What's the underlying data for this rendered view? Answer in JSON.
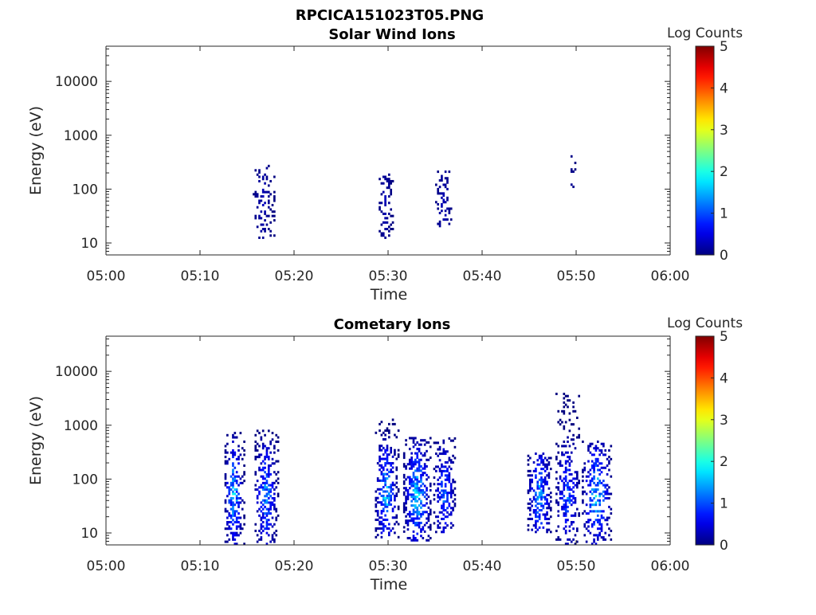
{
  "figure_title": "RPCICA151023T05.PNG",
  "chart_data": [
    {
      "type": "heatmap",
      "title": "Solar Wind Ions",
      "xlabel": "Time",
      "ylabel": "Energy (eV)",
      "x_ticks": [
        "05:00",
        "05:10",
        "05:20",
        "05:30",
        "05:40",
        "05:50",
        "06:00"
      ],
      "xlim_minutes": [
        0,
        60
      ],
      "y_scale": "log",
      "y_ticks": [
        "10",
        "100",
        "1000",
        "10000"
      ],
      "ylim": [
        6,
        45000
      ],
      "colorbar": {
        "label": "Log Counts",
        "ticks": [
          "0",
          "1",
          "2",
          "3",
          "4",
          "5"
        ],
        "range": [
          0,
          5
        ],
        "colormap": "jet"
      },
      "clusters": [
        {
          "t_min": 15.6,
          "t_max": 17.8,
          "e_min": 12,
          "e_max": 350,
          "peak": 0.3,
          "density": 0.35
        },
        {
          "t_min": 29.0,
          "t_max": 30.4,
          "e_min": 12,
          "e_max": 180,
          "peak": 0.3,
          "density": 0.45
        },
        {
          "t_min": 35.0,
          "t_max": 36.8,
          "e_min": 18,
          "e_max": 210,
          "peak": 0.3,
          "density": 0.4
        },
        {
          "t_min": 49.2,
          "t_max": 49.9,
          "e_min": 80,
          "e_max": 400,
          "peak": 0.2,
          "density": 0.15
        }
      ]
    },
    {
      "type": "heatmap",
      "title": "Cometary Ions",
      "xlabel": "Time",
      "ylabel": "Energy (eV)",
      "x_ticks": [
        "05:00",
        "05:10",
        "05:20",
        "05:30",
        "05:40",
        "05:50",
        "06:00"
      ],
      "xlim_minutes": [
        0,
        60
      ],
      "y_scale": "log",
      "y_ticks": [
        "10",
        "100",
        "1000",
        "10000"
      ],
      "ylim": [
        6,
        45000
      ],
      "colorbar": {
        "label": "Log Counts",
        "ticks": [
          "0",
          "1",
          "2",
          "3",
          "4",
          "5"
        ],
        "range": [
          0,
          5
        ],
        "colormap": "jet"
      },
      "clusters": [
        {
          "t_min": 12.6,
          "t_max": 14.6,
          "e_min": 6,
          "e_max": 700,
          "peak": 1.9,
          "density": 0.6
        },
        {
          "t_min": 15.8,
          "t_max": 18.2,
          "e_min": 6,
          "e_max": 800,
          "peak": 1.6,
          "density": 0.65
        },
        {
          "t_min": 28.6,
          "t_max": 31.0,
          "e_min": 8,
          "e_max": 1300,
          "peak": 1.9,
          "density": 0.65
        },
        {
          "t_min": 31.6,
          "t_max": 34.6,
          "e_min": 7,
          "e_max": 600,
          "peak": 2.0,
          "density": 0.7
        },
        {
          "t_min": 34.8,
          "t_max": 37.2,
          "e_min": 10,
          "e_max": 550,
          "peak": 1.3,
          "density": 0.6
        },
        {
          "t_min": 44.8,
          "t_max": 47.4,
          "e_min": 10,
          "e_max": 300,
          "peak": 1.6,
          "density": 0.6
        },
        {
          "t_min": 47.8,
          "t_max": 50.4,
          "e_min": 6,
          "e_max": 4000,
          "peak": 1.3,
          "density": 0.5
        },
        {
          "t_min": 50.6,
          "t_max": 53.8,
          "e_min": 6,
          "e_max": 550,
          "peak": 1.9,
          "density": 0.6
        }
      ]
    }
  ]
}
